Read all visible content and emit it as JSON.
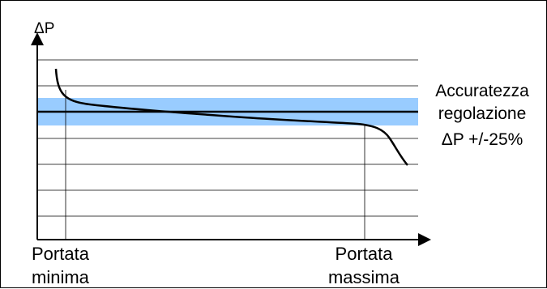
{
  "diagram": {
    "y_axis_label": "ΔP",
    "annotation": {
      "line1": "Accuratezza",
      "line2": "regolazione",
      "line3": "ΔP +/-25%"
    },
    "min_flow_label": {
      "line1": "Portata",
      "line2": "minima"
    },
    "max_flow_label": {
      "line1": "Portata",
      "line2": "massima"
    },
    "colors": {
      "band": "#99ccff",
      "curve": "#000000",
      "grid": "#000000"
    }
  }
}
